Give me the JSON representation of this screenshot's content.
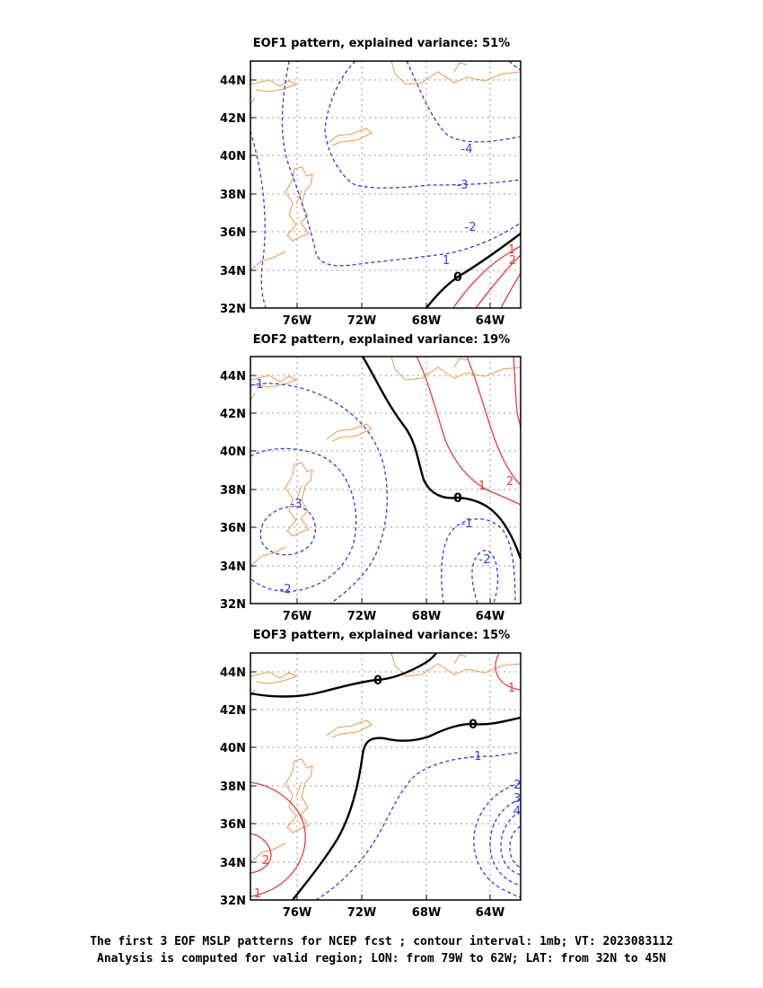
{
  "colors": {
    "negative": "#2b3fe0",
    "positive": "#e83c3c",
    "zero": "#000000",
    "coast": "#e89a4a",
    "grid": "#999999"
  },
  "footer": {
    "line1": "The first 3 EOF MSLP patterns for NCEP fcst ; contour interval: 1mb; VT: 2023083112",
    "line2": "Analysis is computed for valid region; LON: from 79W to 62W; LAT: from 32N to 45N"
  },
  "chart_data": [
    {
      "type": "contour",
      "title": "EOF1 pattern, explained variance: 51%",
      "lon_range": [
        -79,
        -62
      ],
      "lat_range": [
        32,
        45
      ],
      "x_ticks": [
        "76W",
        "72W",
        "68W",
        "64W"
      ],
      "y_ticks": [
        "44N",
        "42N",
        "40N",
        "38N",
        "36N",
        "34N",
        "32N"
      ],
      "grid": true,
      "contour_levels": [
        "-4",
        "-3",
        "-2",
        "-1",
        "0",
        "1",
        "2"
      ]
    },
    {
      "type": "contour",
      "title": "EOF2 pattern, explained variance: 19%",
      "lon_range": [
        -79,
        -62
      ],
      "lat_range": [
        32,
        45
      ],
      "x_ticks": [
        "76W",
        "72W",
        "68W",
        "64W"
      ],
      "y_ticks": [
        "44N",
        "42N",
        "40N",
        "38N",
        "36N",
        "34N",
        "32N"
      ],
      "grid": true,
      "contour_levels": [
        "-3",
        "-2",
        "-1",
        "0",
        "1",
        "2",
        "3"
      ]
    },
    {
      "type": "contour",
      "title": "EOF3 pattern, explained variance: 15%",
      "lon_range": [
        -79,
        -62
      ],
      "lat_range": [
        32,
        45
      ],
      "x_ticks": [
        "76W",
        "72W",
        "68W",
        "64W"
      ],
      "y_ticks": [
        "44N",
        "42N",
        "40N",
        "38N",
        "36N",
        "34N",
        "32N"
      ],
      "grid": true,
      "contour_levels": [
        "-4",
        "-3",
        "-2",
        "-1",
        "0",
        "1",
        "2"
      ]
    }
  ]
}
